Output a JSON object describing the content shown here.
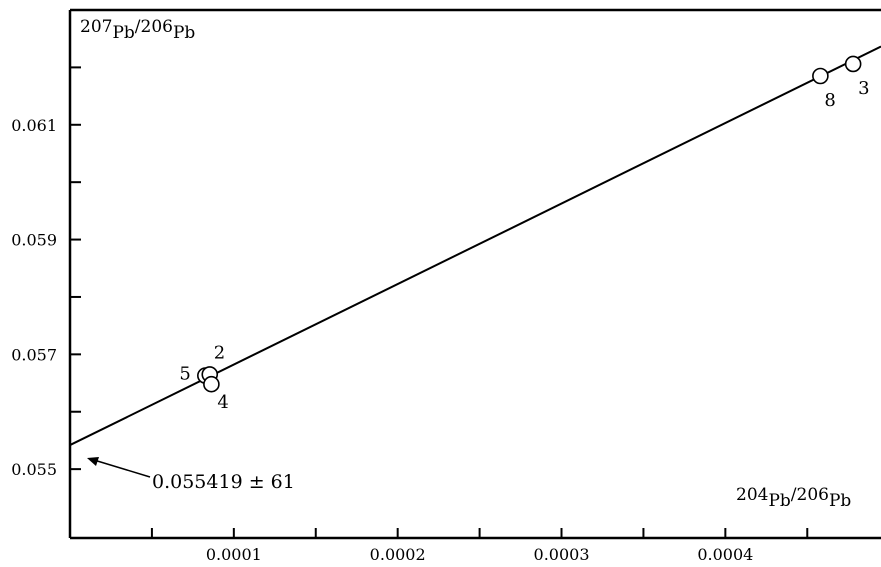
{
  "chart_data": {
    "type": "scatter",
    "title": "",
    "ylabel": {
      "num_sup": "207",
      "num": "Pb",
      "den_sup": "206",
      "den": "Pb"
    },
    "xlabel": {
      "num_sup": "204",
      "num": "Pb",
      "den_sup": "206",
      "den": "Pb"
    },
    "xlim": [
      0.0,
      0.000495
    ],
    "ylim": [
      0.0538,
      0.063
    ],
    "x_ticks": [
      5e-05,
      0.0001,
      0.00015,
      0.0002,
      0.00025,
      0.0003,
      0.00035,
      0.0004,
      0.00045
    ],
    "x_tick_labels": [
      {
        "value": 0.0001,
        "label": "0.0001"
      },
      {
        "value": 0.0002,
        "label": "0.0002"
      },
      {
        "value": 0.0003,
        "label": "0.0003"
      },
      {
        "value": 0.0004,
        "label": "0.0004"
      }
    ],
    "y_ticks": [
      0.055,
      0.056,
      0.057,
      0.058,
      0.059,
      0.06,
      0.061,
      0.062
    ],
    "y_tick_labels": [
      {
        "value": 0.055,
        "label": "0.055"
      },
      {
        "value": 0.057,
        "label": "0.057"
      },
      {
        "value": 0.059,
        "label": "0.059"
      },
      {
        "value": 0.061,
        "label": "0.061"
      }
    ],
    "grid": false,
    "points": [
      {
        "label": "5",
        "x": 8.26e-05,
        "y": 0.05663
      },
      {
        "label": "2",
        "x": 8.53e-05,
        "y": 0.05665
      },
      {
        "label": "4",
        "x": 8.63e-05,
        "y": 0.05648
      },
      {
        "label": "8",
        "x": 0.000458,
        "y": 0.06185
      },
      {
        "label": "3",
        "x": 0.000478,
        "y": 0.06206
      }
    ],
    "regression": {
      "intercept": 0.055419,
      "slope": 14.03,
      "x_range": [
        0.0,
        0.000495
      ]
    },
    "annotation": {
      "text": "0.055419 ± 61",
      "x": 0.0,
      "y": 0.055419
    }
  }
}
